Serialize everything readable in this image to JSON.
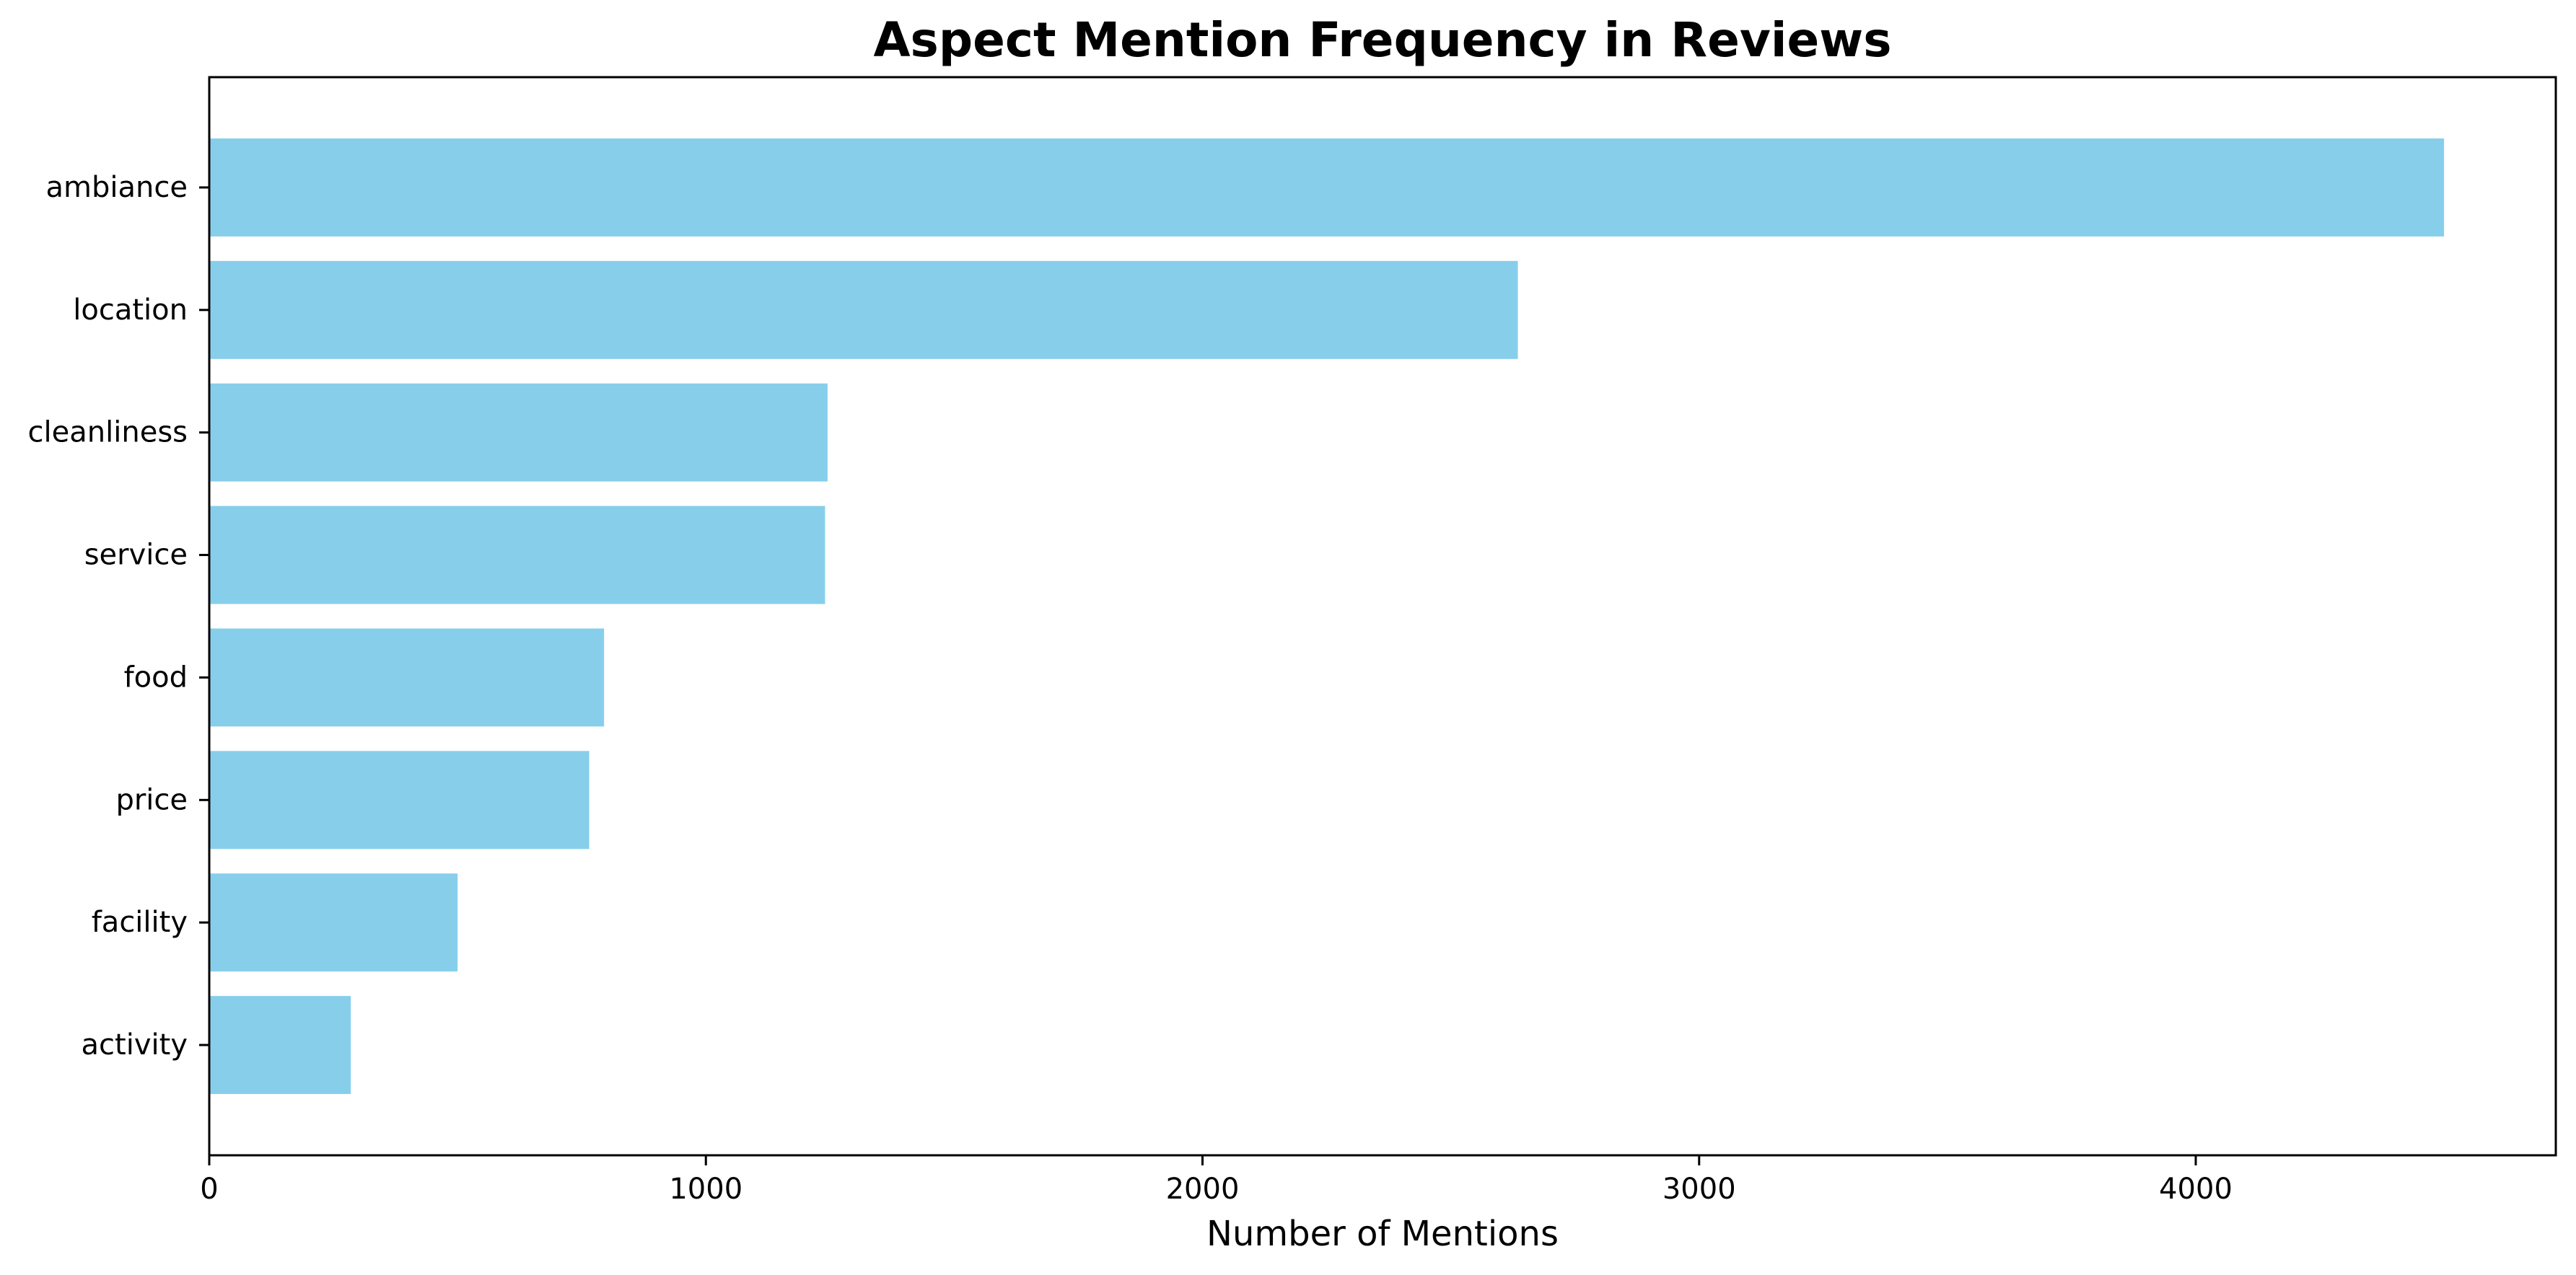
{
  "chart_data": {
    "type": "bar",
    "orientation": "horizontal",
    "title": "Aspect Mention Frequency in Reviews",
    "xlabel": "Number of Mentions",
    "ylabel": "",
    "categories": [
      "ambiance",
      "location",
      "cleanliness",
      "service",
      "food",
      "price",
      "facility",
      "activity"
    ],
    "values": [
      4500,
      2635,
      1245,
      1240,
      795,
      765,
      500,
      285
    ],
    "xlim": [
      0,
      4725
    ],
    "x_ticks": [
      0,
      1000,
      2000,
      3000,
      4000
    ],
    "x_tick_labels": [
      "0",
      "1000",
      "2000",
      "3000",
      "4000"
    ],
    "grid": false,
    "legend": "none",
    "bar_color": "#87CEEB"
  }
}
